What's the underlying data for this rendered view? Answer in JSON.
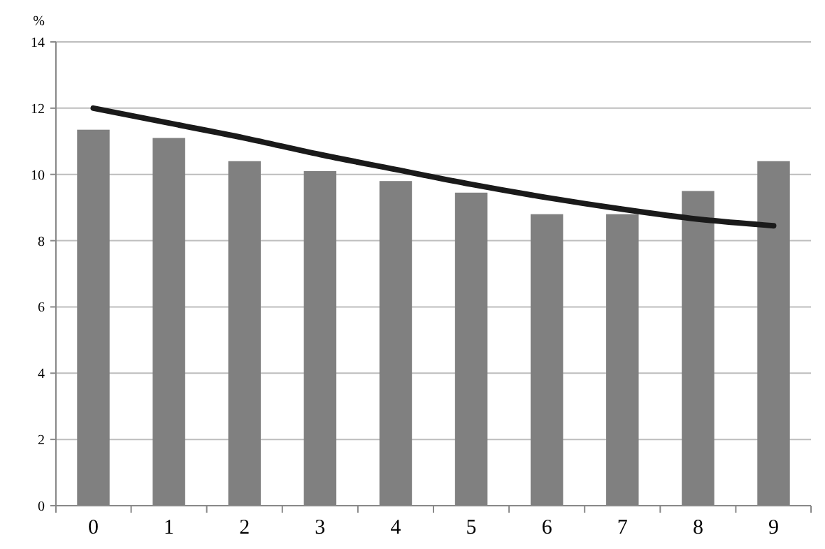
{
  "chart_data": {
    "type": "bar",
    "ylabel": "%",
    "categories": [
      "0",
      "1",
      "2",
      "3",
      "4",
      "5",
      "6",
      "7",
      "8",
      "9"
    ],
    "series": [
      {
        "color": "#808080",
        "values": [
          11.35,
          11.1,
          10.4,
          10.1,
          9.8,
          9.45,
          8.8,
          8.8,
          9.5,
          10.4
        ]
      },
      {
        "type": "line",
        "color": "#1a1a1a",
        "values": [
          12.0,
          11.55,
          11.1,
          10.6,
          10.15,
          9.7,
          9.3,
          8.95,
          8.65,
          8.45
        ]
      }
    ],
    "ylim": [
      0,
      14
    ],
    "yticks": [
      0,
      2,
      4,
      6,
      8,
      10,
      12,
      14
    ],
    "grid": "y"
  }
}
